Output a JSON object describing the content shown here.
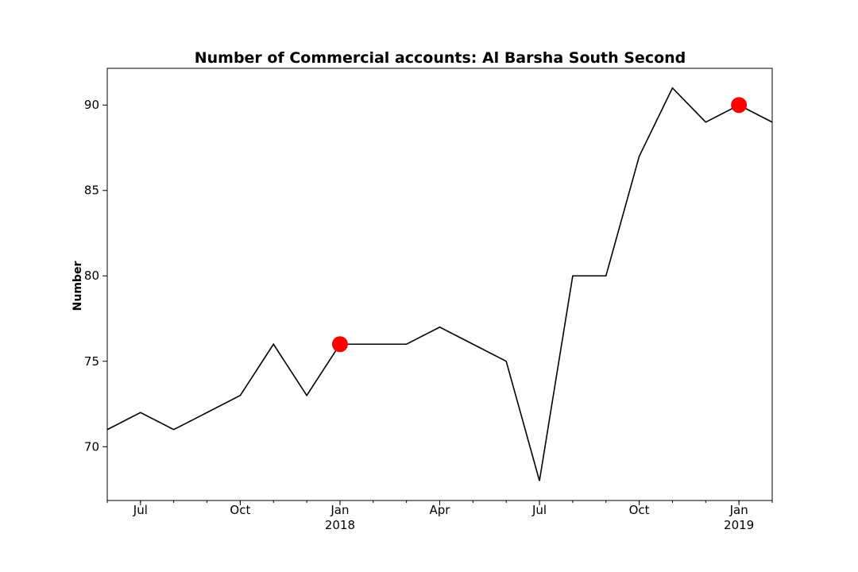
{
  "chart_data": {
    "type": "line",
    "title": "Number of Commercial accounts: Al Barsha South Second",
    "xlabel": "",
    "ylabel": "Number",
    "x": [
      "2017-06",
      "2017-07",
      "2017-08",
      "2017-09",
      "2017-10",
      "2017-11",
      "2017-12",
      "2018-01",
      "2018-02",
      "2018-03",
      "2018-04",
      "2018-05",
      "2018-06",
      "2018-07",
      "2018-08",
      "2018-09",
      "2018-10",
      "2018-11",
      "2018-12",
      "2019-01",
      "2019-02"
    ],
    "series": [
      {
        "values": [
          71,
          72,
          71,
          72,
          73,
          76,
          73,
          76,
          76,
          76,
          77,
          76,
          75,
          68,
          80,
          80,
          87,
          91,
          89,
          90,
          89
        ],
        "color": "#000000"
      }
    ],
    "highlights": [
      {
        "x": "2018-01",
        "y": 76,
        "color": "#ff0000"
      },
      {
        "x": "2019-01",
        "y": 90,
        "color": "#ff0000"
      }
    ],
    "xlim": [
      "2017-06",
      "2019-02"
    ],
    "ylim": [
      66.85,
      92.15
    ],
    "yticks": [
      70,
      75,
      80,
      85,
      90
    ],
    "xticks": [
      {
        "x": "2017-07",
        "label": "Jul",
        "sub": ""
      },
      {
        "x": "2017-10",
        "label": "Oct",
        "sub": ""
      },
      {
        "x": "2018-01",
        "label": "Jan",
        "sub": "2018"
      },
      {
        "x": "2018-04",
        "label": "Apr",
        "sub": ""
      },
      {
        "x": "2018-07",
        "label": "Jul",
        "sub": ""
      },
      {
        "x": "2018-10",
        "label": "Oct",
        "sub": ""
      },
      {
        "x": "2019-01",
        "label": "Jan",
        "sub": "2019"
      }
    ],
    "grid": false,
    "legend": "none"
  }
}
